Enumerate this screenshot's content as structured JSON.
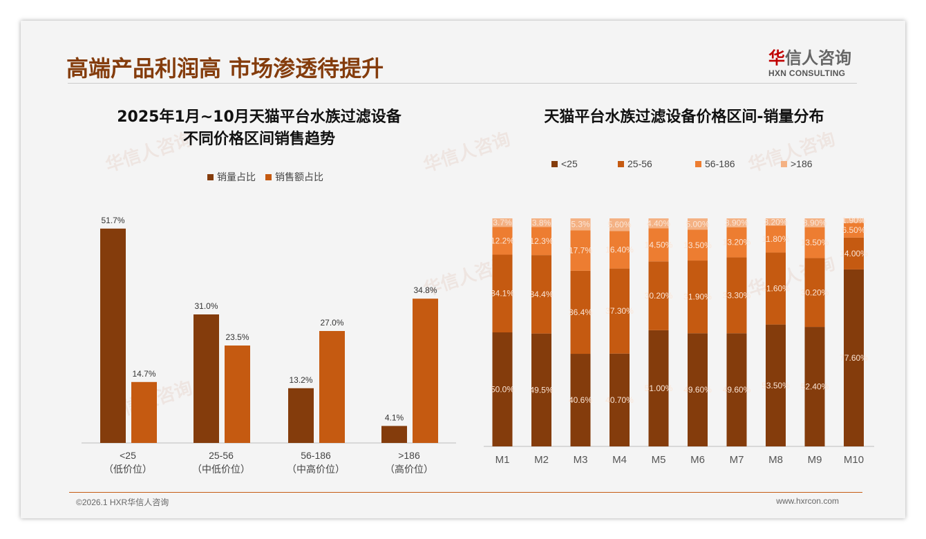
{
  "header": {
    "title": "高端产品利润高 市场渗透待提升",
    "logo_cn_red": "华",
    "logo_cn_rest": "信人咨询",
    "logo_en": "HXN CONSULTING"
  },
  "footer": {
    "left": "©2026.1 HXR华信人咨询",
    "right": "www.hxrcon.com"
  },
  "colors": {
    "dark": "#843C0C",
    "orange": "#C55A11",
    "light": "#ED7D31",
    "lightest": "#F4B183"
  },
  "chart_data": [
    {
      "type": "bar",
      "title_line1": "2025年1月~10月天猫平台水族过滤设备",
      "title_line2": "不同价格区间销售趋势",
      "categories": [
        "<25",
        "25-56",
        "56-186",
        ">186"
      ],
      "category_sub": [
        "（低价位）",
        "（中低价位）",
        "（中高价位）",
        "（高价位）"
      ],
      "series": [
        {
          "name": "销量占比",
          "values": [
            51.7,
            31.0,
            13.2,
            4.1
          ],
          "labels": [
            "51.7%",
            "31.0%",
            "13.2%",
            "4.1%"
          ]
        },
        {
          "name": "销售额占比",
          "values": [
            14.7,
            23.5,
            27.0,
            34.8
          ],
          "labels": [
            "14.7%",
            "23.5%",
            "27.0%",
            "34.8%"
          ]
        }
      ],
      "ylim": [
        0,
        55
      ],
      "legend": "top"
    },
    {
      "type": "bar",
      "stacked": true,
      "title": "天猫平台水族过滤设备价格区间-销量分布",
      "categories": [
        "M1",
        "M2",
        "M3",
        "M4",
        "M5",
        "M6",
        "M7",
        "M8",
        "M9",
        "M10"
      ],
      "series": [
        {
          "name": "<25",
          "values": [
            50.0,
            49.5,
            40.6,
            40.7,
            51.0,
            49.6,
            49.6,
            53.5,
            52.4,
            77.6
          ],
          "labels": [
            "50.0%",
            "49.5%",
            "40.6%",
            "40.70%",
            "51.00%",
            "49.60%",
            "49.60%",
            "53.50%",
            "52.40%",
            "77.60%"
          ]
        },
        {
          "name": "25-56",
          "values": [
            34.1,
            34.4,
            36.4,
            37.3,
            30.2,
            31.9,
            33.3,
            31.6,
            30.2,
            14.0
          ],
          "labels": [
            "34.1%",
            "34.4%",
            "36.4%",
            "37.30%",
            "30.20%",
            "31.90%",
            "33.30%",
            "31.60%",
            "30.20%",
            "14.00%"
          ]
        },
        {
          "name": "56-186",
          "values": [
            12.2,
            12.3,
            17.7,
            16.4,
            14.5,
            13.5,
            13.2,
            11.8,
            13.5,
            6.5
          ],
          "labels": [
            "12.2%",
            "12.3%",
            "17.7%",
            "16.40%",
            "14.50%",
            "13.50%",
            "13.20%",
            "11.80%",
            "13.50%",
            "6.50%"
          ]
        },
        {
          "name": ">186",
          "values": [
            3.7,
            3.8,
            5.3,
            5.6,
            4.4,
            5.0,
            3.9,
            3.2,
            3.9,
            1.9
          ],
          "labels": [
            "3.7%",
            "3.8%",
            "5.3%",
            "5.60%",
            "4.40%",
            "5.00%",
            "3.90%",
            "3.20%",
            "3.90%",
            "1.90%"
          ]
        }
      ],
      "ylim": [
        0,
        100
      ],
      "legend": "top"
    }
  ]
}
